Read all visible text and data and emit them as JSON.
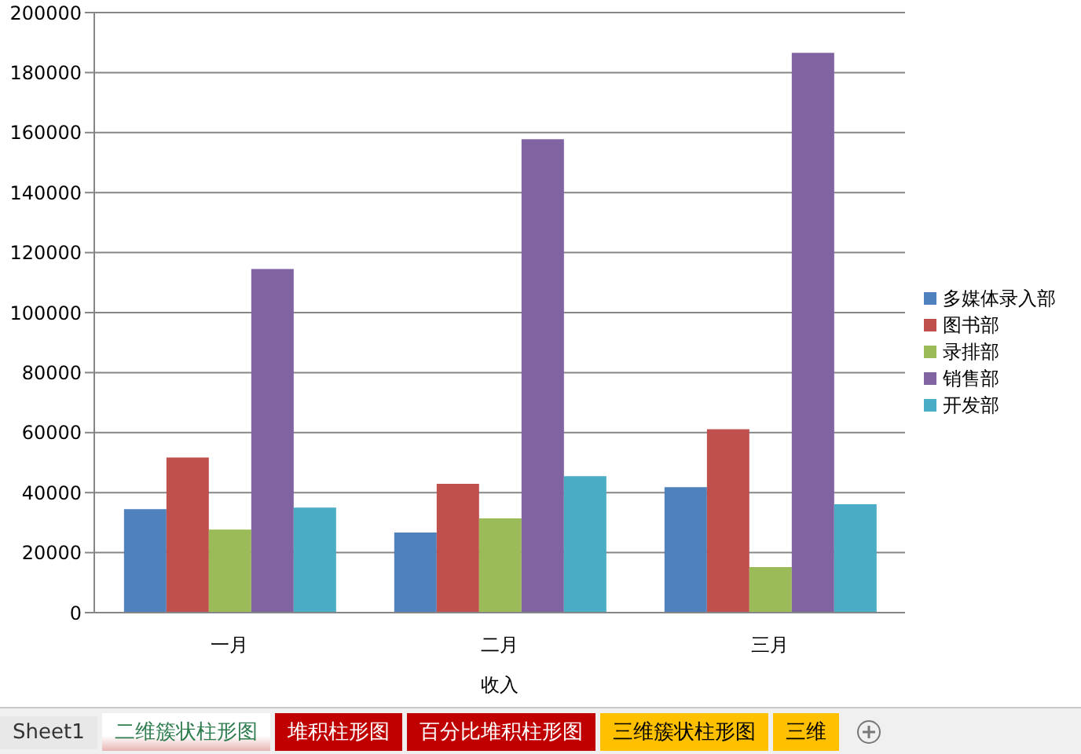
{
  "chart_data": {
    "type": "bar",
    "xlabel": "收入",
    "categories": [
      "一月",
      "二月",
      "三月"
    ],
    "series": [
      {
        "name": "多媒体录入部",
        "color": "#4f81bd",
        "values": [
          34500,
          26700,
          41800
        ]
      },
      {
        "name": "图书部",
        "color": "#c0504d",
        "values": [
          51700,
          42900,
          61100
        ]
      },
      {
        "name": "录排部",
        "color": "#9bbb59",
        "values": [
          27700,
          31400,
          15200
        ]
      },
      {
        "name": "销售部",
        "color": "#8064a2",
        "values": [
          114500,
          157800,
          186600
        ]
      },
      {
        "name": "开发部",
        "color": "#4bacc6",
        "values": [
          35000,
          45500,
          36100
        ]
      }
    ],
    "ylim": [
      0,
      200000
    ],
    "yticks": [
      0,
      20000,
      40000,
      60000,
      80000,
      100000,
      120000,
      140000,
      160000,
      180000,
      200000
    ],
    "grid": "y",
    "legend": "right",
    "annotations": [
      "Sheet1",
      "二维簇状柱形图",
      "堆积柱形图",
      "百分比堆积柱形图",
      "三维簇状柱形图",
      "三维"
    ]
  }
}
